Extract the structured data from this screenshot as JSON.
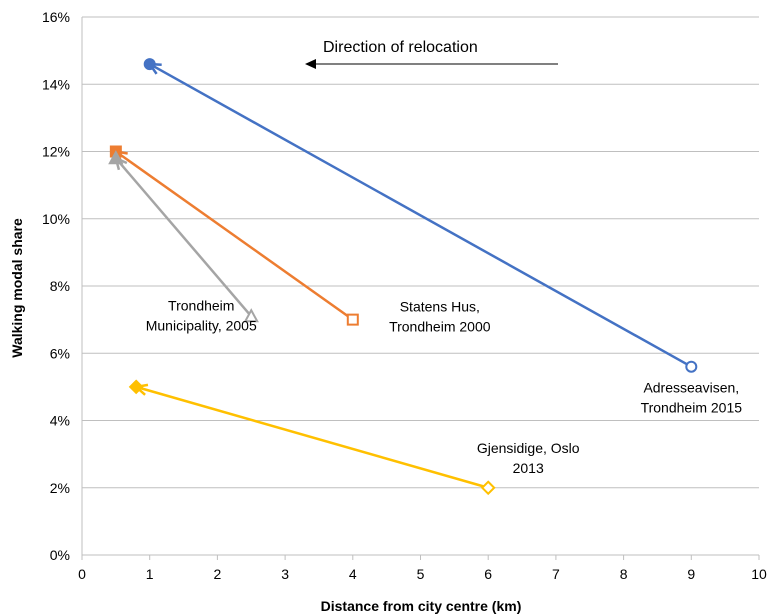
{
  "chart_data": {
    "type": "scatter",
    "title": "",
    "xlabel": "Distance from city centre (km)",
    "ylabel": "Walking modal share",
    "xlim": [
      0,
      10
    ],
    "ylim": [
      0,
      0.16
    ],
    "x_ticks": [
      0,
      1,
      2,
      3,
      4,
      5,
      6,
      7,
      8,
      9,
      10
    ],
    "y_ticks": [
      0,
      0.02,
      0.04,
      0.06,
      0.08,
      0.1,
      0.12,
      0.14,
      0.16
    ],
    "x_tick_labels": [
      "0",
      "1",
      "2",
      "3",
      "4",
      "5",
      "6",
      "7",
      "8",
      "9",
      "10"
    ],
    "y_tick_labels": [
      "0%",
      "2%",
      "4%",
      "6%",
      "8%",
      "10%",
      "12%",
      "14%",
      "16%"
    ],
    "grid": "horizontal",
    "legend": "none",
    "direction_annotation": "Direction of relocation",
    "series": [
      {
        "label_lines": [
          "Adresseavisen,",
          "Trondheim 2015"
        ],
        "color": "#4472c4",
        "marker": "circle",
        "before": {
          "x": 9,
          "y": 0.056
        },
        "after": {
          "x": 1,
          "y": 0.146
        }
      },
      {
        "label_lines": [
          "Statens Hus,",
          "Trondheim 2000"
        ],
        "color": "#ed7d31",
        "marker": "square",
        "before": {
          "x": 4,
          "y": 0.07
        },
        "after": {
          "x": 0.5,
          "y": 0.12
        }
      },
      {
        "label_lines": [
          "Trondheim",
          "Municipality, 2005"
        ],
        "color": "#a5a5a5",
        "marker": "triangle",
        "before": {
          "x": 2.5,
          "y": 0.071
        },
        "after": {
          "x": 0.5,
          "y": 0.118
        }
      },
      {
        "label_lines": [
          "Gjensidige, Oslo",
          "2013"
        ],
        "color": "#ffc000",
        "marker": "diamond",
        "before": {
          "x": 6,
          "y": 0.02
        },
        "after": {
          "x": 0.8,
          "y": 0.05
        }
      }
    ]
  }
}
